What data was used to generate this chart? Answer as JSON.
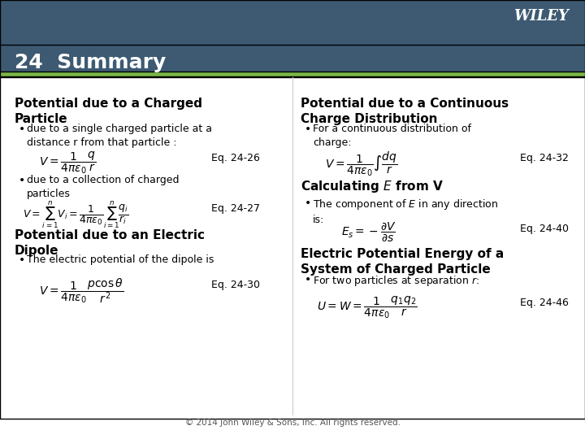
{
  "bg_header_color": "#3d5a72",
  "bg_main_color": "#f0f0f0",
  "bg_content_color": "#ffffff",
  "green_bar_color": "#7ab648",
  "title_text": "24  Summary",
  "title_color": "#ffffff",
  "wiley_text": "WILEY",
  "wiley_color": "#ffffff",
  "divider_color": "#7ab648",
  "footer_text": "© 2014 John Wiley & Sons, Inc. All rights reserved.",
  "footer_color": "#555555",
  "section1_title": "Potential due to a Charged\nParticle",
  "section1_bullet1": "due to a single charged particle at a\ndistance r from that particle :",
  "section1_eq1": "$V = \\dfrac{1}{4\\pi\\varepsilon_0}\\dfrac{q}{r}$",
  "section1_eq1_label": "Eq. 24-26",
  "section1_bullet2": "due to a collection of charged\nparticles",
  "section1_eq2": "$V = \\sum_{i=1}^{n} V_i = \\dfrac{1}{4\\pi\\varepsilon_0}\\sum_{i=1}^{n}\\dfrac{q_i}{r_i}$",
  "section1_eq2_label": "Eq. 24-27",
  "section2_title": "Potential due to an Electric\nDipole",
  "section2_bullet1": "The electric potential of the dipole is",
  "section2_eq1": "$V = \\dfrac{1}{4\\pi\\varepsilon_0}\\dfrac{p\\cos\\theta}{r^2}$",
  "section2_eq1_label": "Eq. 24-30",
  "section3_title": "Potential due to a Continuous\nCharge Distribution",
  "section3_bullet1": "For a continuous distribution of\ncharge:",
  "section3_eq1": "$V = \\dfrac{1}{4\\pi\\varepsilon_0}\\int\\dfrac{dq}{r}$",
  "section3_eq1_label": "Eq. 24-32",
  "section4_title": "Calculating $E$ from V",
  "section4_bullet1": "The component of $E$ in any direction\nis:",
  "section4_eq1": "$E_s = -\\dfrac{\\partial V}{\\partial s}$",
  "section4_eq1_label": "Eq. 24-40",
  "section5_title": "Electric Potential Energy of a\nSystem of Charged Particle",
  "section5_bullet1": "For two particles at separation $r$:",
  "section5_eq1": "$U = W = \\dfrac{1}{4\\pi\\varepsilon_0}\\dfrac{q_1 q_2}{r}$",
  "section5_eq1_label": "Eq. 24-46"
}
